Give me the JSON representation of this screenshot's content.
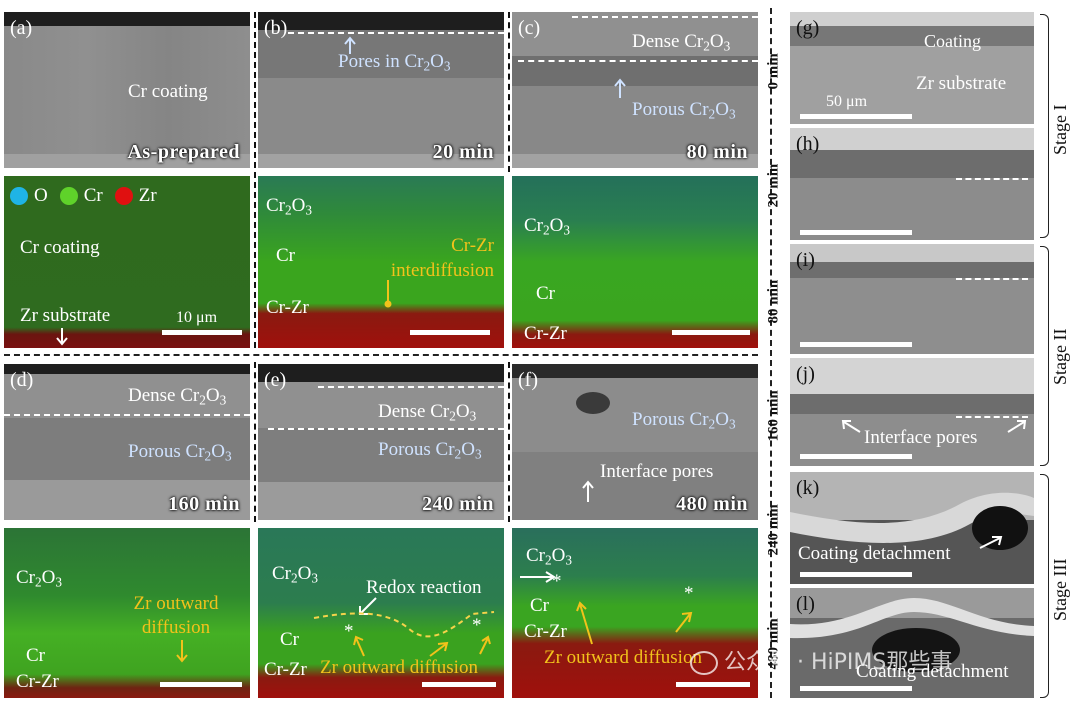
{
  "panels": {
    "a": {
      "label": "(a)",
      "coating": "Cr coating",
      "time": "As-prepared"
    },
    "b": {
      "label": "(b)",
      "annotation": "Pores in Cr2O3",
      "time": "20 min"
    },
    "c": {
      "label": "(c)",
      "dense": "Dense Cr2O3",
      "porous": "Porous Cr2O3",
      "time": "80 min"
    },
    "d": {
      "label": "(d)",
      "dense": "Dense Cr2O3",
      "porous": "Porous Cr2O3",
      "time": "160 min"
    },
    "e": {
      "label": "(e)",
      "dense": "Dense Cr2O3",
      "porous": "Porous Cr2O3",
      "time": "240 min"
    },
    "f": {
      "label": "(f)",
      "porous": "Porous Cr2O3",
      "pores": "Interface pores",
      "time": "480 min"
    }
  },
  "eds_top": {
    "legend": [
      {
        "name": "O",
        "color": "#1fb4e6"
      },
      {
        "name": "Cr",
        "color": "#5fd22a"
      },
      {
        "name": "Zr",
        "color": "#e01010"
      }
    ],
    "map1": {
      "coating": "Cr coating",
      "substrate": "Zr substrate",
      "scale": "10 μm"
    },
    "map2": {
      "oxide": "Cr2O3",
      "cr": "Cr",
      "crzr": "Cr-Zr",
      "note": "Cr-Zr interdiffusion"
    },
    "map3": {
      "oxide": "Cr2O3",
      "cr": "Cr",
      "crzr": "Cr-Zr"
    }
  },
  "eds_bottom": {
    "map1": {
      "oxide": "Cr2O3",
      "note": "Zr outward diffusion",
      "cr": "Cr",
      "crzr": "Cr-Zr"
    },
    "map2": {
      "oxide": "Cr2O3",
      "redox": "Redox reaction",
      "cr": "Cr",
      "crzr": "Cr-Zr",
      "note": "Zr outward diffusion",
      "star": "*"
    },
    "map3": {
      "oxide": "Cr2O3",
      "cr": "Cr",
      "crzr": "Cr-Zr",
      "note": "Zr outward diffusion",
      "star": "*"
    }
  },
  "right_column": {
    "g": {
      "label": "(g)",
      "time": "0 min",
      "coating": "Coating",
      "substrate": "Zr substrate",
      "scale": "50 μm"
    },
    "h": {
      "label": "(h)",
      "time": "20 min"
    },
    "i": {
      "label": "(i)",
      "time": "80 min"
    },
    "j": {
      "label": "(j)",
      "time": "160 min",
      "pores": "Interface pores"
    },
    "k": {
      "label": "(k)",
      "time": "240 min",
      "detach": "Coating detachment"
    },
    "l": {
      "label": "(l)",
      "time": "480 min",
      "detach": "Coating detachment"
    }
  },
  "stages": [
    "Stage I",
    "Stage II",
    "Stage III"
  ],
  "watermark": "公众号 · HiPIMS那些事"
}
